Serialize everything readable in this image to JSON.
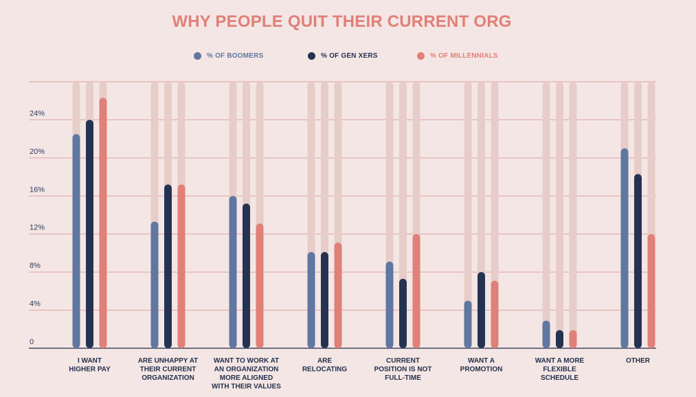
{
  "chart_data": {
    "type": "bar",
    "title": "WHY PEOPLE QUIT THEIR CURRENT ORG",
    "xlabel": "",
    "ylabel": "",
    "ylim": [
      0,
      28
    ],
    "yticks": [
      {
        "value": 0,
        "label": "0"
      },
      {
        "value": 4,
        "label": "4%"
      },
      {
        "value": 8,
        "label": "8%"
      },
      {
        "value": 12,
        "label": "12%"
      },
      {
        "value": 16,
        "label": "16%"
      },
      {
        "value": 20,
        "label": "20%"
      },
      {
        "value": 24,
        "label": "24%"
      }
    ],
    "categories": [
      [
        "I WANT",
        "HIGHER PAY"
      ],
      [
        "ARE UNHAPPY AT",
        "THEIR CURRENT",
        "ORGANIZATION"
      ],
      [
        "WANT TO WORK AT",
        "AN ORGANIZATION",
        "MORE ALIGNED",
        "WITH THEIR VALUES"
      ],
      [
        "ARE",
        "RELOCATING"
      ],
      [
        "CURRENT",
        "POSITION IS NOT",
        "FULL-TIME"
      ],
      [
        "WANT A",
        "PROMOTION"
      ],
      [
        "WANT A MORE",
        "FLEXIBLE",
        "SCHEDULE"
      ],
      [
        "OTHER"
      ]
    ],
    "series": [
      {
        "name": "% OF BOOMERS",
        "color": "#5f77a1",
        "values": [
          22.5,
          13.3,
          16,
          10.1,
          9.1,
          5,
          2.9,
          21
        ]
      },
      {
        "name": "% OF GEN XERS",
        "color": "#253352",
        "values": [
          24,
          17.2,
          15.2,
          10.1,
          7.3,
          8,
          1.9,
          18.3
        ]
      },
      {
        "name": "% OF MILLENNIALS",
        "color": "#e08078",
        "values": [
          26.3,
          17.2,
          13.1,
          11.1,
          12,
          7.1,
          1.9,
          12
        ]
      }
    ],
    "track_color": "#e7cdc9",
    "grid_color": "#dda3a0"
  }
}
